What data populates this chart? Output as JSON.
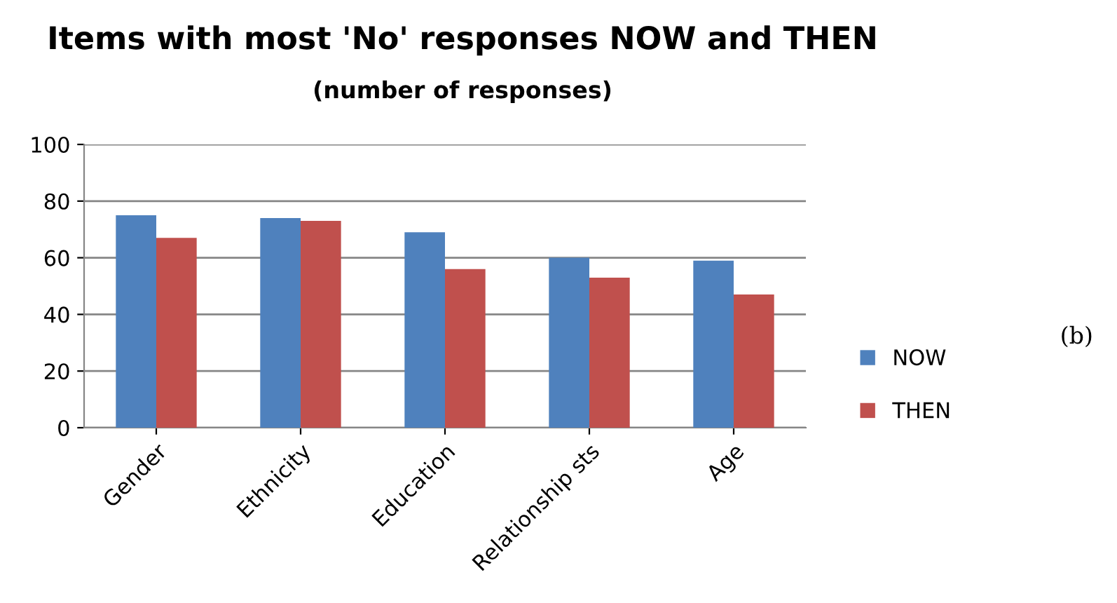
{
  "chart_data": {
    "type": "bar",
    "title": "Items with most 'No' responses NOW and THEN",
    "subtitle": "(number of responses)",
    "categories": [
      "Gender",
      "Ethnicity",
      "Education",
      "Relationship sts",
      "Age"
    ],
    "series": [
      {
        "name": "NOW",
        "color": "#4f81bd",
        "values": [
          75,
          74,
          69,
          60,
          59
        ]
      },
      {
        "name": "THEN",
        "color": "#c0504d",
        "values": [
          67,
          73,
          56,
          53,
          47
        ]
      }
    ],
    "ylim": [
      0,
      100
    ],
    "yticks": [
      0,
      20,
      40,
      60,
      80,
      100
    ],
    "grid": "y",
    "legend": "right",
    "annotations": [
      "(b)"
    ]
  }
}
